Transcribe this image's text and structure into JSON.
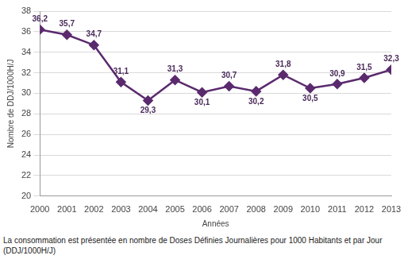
{
  "chart_data": {
    "type": "line",
    "x_label": "Années",
    "y_label": "Nombre de DDJ/1000H/J",
    "annotations": [
      "La consommation est présentée en nombre de Doses Définies Journalières pour 1000 Habitants et par Jour (DDJ/1000H/J)"
    ],
    "categories": [
      "2000",
      "2001",
      "2002",
      "2003",
      "2004",
      "2005",
      "2006",
      "2007",
      "2008",
      "2009",
      "2010",
      "2011",
      "2012",
      "2013"
    ],
    "values": [
      36.2,
      35.7,
      34.7,
      31.1,
      29.3,
      31.3,
      30.1,
      30.7,
      30.2,
      31.8,
      30.5,
      30.9,
      31.5,
      32.3
    ],
    "value_labels": [
      "36,2",
      "35,7",
      "34,7",
      "31,1",
      "29,3",
      "31,3",
      "30,1",
      "30,7",
      "30,2",
      "31,8",
      "30,5",
      "30,9",
      "31,5",
      "32,3"
    ],
    "color": "#5b2a6e",
    "marker": "diamond",
    "ylim": [
      20,
      38
    ],
    "yticks": [
      20,
      22,
      24,
      26,
      28,
      30,
      32,
      34,
      36,
      38
    ],
    "grid": true,
    "data_labels": true,
    "legend": false
  }
}
